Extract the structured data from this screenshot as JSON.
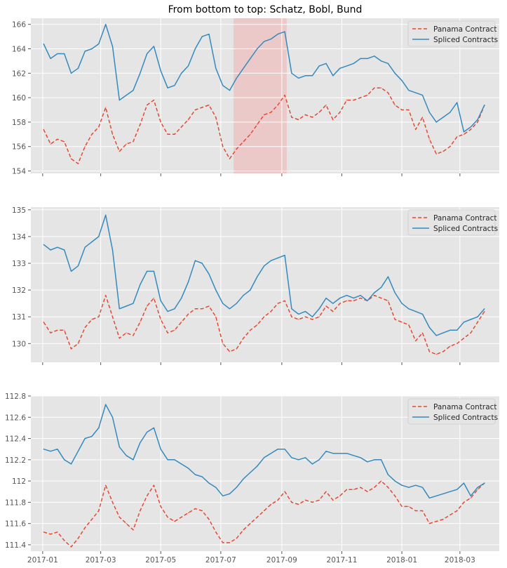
{
  "chart_data": [
    {
      "type": "line",
      "title": "From bottom to top: Schatz, Bobl, Bund",
      "xlabel": "",
      "ylabel": "",
      "xlim": [
        "2016-12-20",
        "2018-04-10"
      ],
      "ylim": [
        153.8,
        166.5
      ],
      "yticks": [
        154,
        156,
        158,
        160,
        162,
        164,
        166
      ],
      "xticks": [
        "2017-01",
        "2017-03",
        "2017-05",
        "2017-07",
        "2017-09",
        "2017-11",
        "2018-01",
        "2018-03"
      ],
      "show_xtick_labels": false,
      "grid": true,
      "legend": "top-right",
      "highlight_span": {
        "start": "2017-07-14",
        "end": "2017-09-06",
        "color": "#f4a6a6"
      },
      "x": [
        "2017-01-02",
        "2017-01-09",
        "2017-01-16",
        "2017-01-23",
        "2017-01-30",
        "2017-02-06",
        "2017-02-13",
        "2017-02-20",
        "2017-02-27",
        "2017-03-06",
        "2017-03-13",
        "2017-03-20",
        "2017-03-27",
        "2017-04-03",
        "2017-04-10",
        "2017-04-17",
        "2017-04-24",
        "2017-05-01",
        "2017-05-08",
        "2017-05-15",
        "2017-05-22",
        "2017-05-29",
        "2017-06-05",
        "2017-06-12",
        "2017-06-19",
        "2017-06-26",
        "2017-07-03",
        "2017-07-10",
        "2017-07-17",
        "2017-07-24",
        "2017-07-31",
        "2017-08-07",
        "2017-08-14",
        "2017-08-21",
        "2017-08-28",
        "2017-09-04",
        "2017-09-11",
        "2017-09-18",
        "2017-09-25",
        "2017-10-02",
        "2017-10-09",
        "2017-10-16",
        "2017-10-23",
        "2017-10-30",
        "2017-11-06",
        "2017-11-13",
        "2017-11-20",
        "2017-11-27",
        "2017-12-04",
        "2017-12-11",
        "2017-12-18",
        "2017-12-25",
        "2018-01-01",
        "2018-01-08",
        "2018-01-15",
        "2018-01-22",
        "2018-01-29",
        "2018-02-05",
        "2018-02-12",
        "2018-02-19",
        "2018-02-26",
        "2018-03-05",
        "2018-03-12",
        "2018-03-19",
        "2018-03-26"
      ],
      "series": [
        {
          "name": "Panama Contract",
          "style": "dashed",
          "color": "#E24A33",
          "values": [
            157.4,
            156.2,
            156.6,
            156.4,
            155.0,
            154.6,
            156.0,
            157.0,
            157.6,
            159.2,
            157.0,
            155.6,
            156.2,
            156.4,
            157.8,
            159.4,
            159.8,
            158.0,
            157.0,
            157.0,
            157.6,
            158.2,
            159.0,
            159.2,
            159.4,
            158.4,
            156.0,
            155.0,
            155.8,
            156.4,
            157.0,
            157.8,
            158.6,
            158.8,
            159.4,
            160.2,
            158.4,
            158.2,
            158.6,
            158.4,
            158.8,
            159.4,
            158.2,
            158.8,
            159.8,
            159.8,
            160.0,
            160.2,
            160.8,
            160.8,
            160.4,
            159.4,
            159.0,
            159.0,
            157.4,
            158.4,
            156.6,
            155.4,
            155.6,
            156.0,
            156.8,
            157.0,
            157.4,
            158.0,
            159.4
          ]
        },
        {
          "name": "Spliced Contracts",
          "style": "solid",
          "color": "#348ABD",
          "values": [
            164.4,
            163.2,
            163.6,
            163.6,
            162.0,
            162.4,
            163.8,
            164.0,
            164.4,
            166.0,
            164.2,
            159.8,
            160.2,
            160.6,
            162.0,
            163.6,
            164.2,
            162.2,
            160.8,
            161.0,
            162.0,
            162.6,
            164.0,
            165.0,
            165.2,
            162.4,
            161.0,
            160.6,
            161.6,
            162.4,
            163.2,
            164.0,
            164.6,
            164.8,
            165.2,
            165.4,
            162.0,
            161.6,
            161.8,
            161.8,
            162.6,
            162.8,
            161.8,
            162.4,
            162.6,
            162.8,
            163.2,
            163.2,
            163.4,
            163.0,
            162.8,
            162.0,
            161.4,
            160.6,
            160.4,
            160.2,
            158.8,
            158.0,
            158.4,
            158.8,
            159.6,
            157.2,
            157.6,
            158.2,
            159.4
          ]
        }
      ]
    },
    {
      "type": "line",
      "title": "",
      "xlabel": "",
      "ylabel": "",
      "xlim": [
        "2016-12-20",
        "2018-04-10"
      ],
      "ylim": [
        129.3,
        135.1
      ],
      "yticks": [
        130,
        131,
        132,
        133,
        134,
        135
      ],
      "xticks": [
        "2017-01",
        "2017-03",
        "2017-05",
        "2017-07",
        "2017-09",
        "2017-11",
        "2018-01",
        "2018-03"
      ],
      "show_xtick_labels": false,
      "grid": true,
      "legend": "top-right",
      "x": [
        "2017-01-02",
        "2017-01-09",
        "2017-01-16",
        "2017-01-23",
        "2017-01-30",
        "2017-02-06",
        "2017-02-13",
        "2017-02-20",
        "2017-02-27",
        "2017-03-06",
        "2017-03-13",
        "2017-03-20",
        "2017-03-27",
        "2017-04-03",
        "2017-04-10",
        "2017-04-17",
        "2017-04-24",
        "2017-05-01",
        "2017-05-08",
        "2017-05-15",
        "2017-05-22",
        "2017-05-29",
        "2017-06-05",
        "2017-06-12",
        "2017-06-19",
        "2017-06-26",
        "2017-07-03",
        "2017-07-10",
        "2017-07-17",
        "2017-07-24",
        "2017-07-31",
        "2017-08-07",
        "2017-08-14",
        "2017-08-21",
        "2017-08-28",
        "2017-09-04",
        "2017-09-11",
        "2017-09-18",
        "2017-09-25",
        "2017-10-02",
        "2017-10-09",
        "2017-10-16",
        "2017-10-23",
        "2017-10-30",
        "2017-11-06",
        "2017-11-13",
        "2017-11-20",
        "2017-11-27",
        "2017-12-04",
        "2017-12-11",
        "2017-12-18",
        "2017-12-25",
        "2018-01-01",
        "2018-01-08",
        "2018-01-15",
        "2018-01-22",
        "2018-01-29",
        "2018-02-05",
        "2018-02-12",
        "2018-02-19",
        "2018-02-26",
        "2018-03-05",
        "2018-03-12",
        "2018-03-19",
        "2018-03-26"
      ],
      "series": [
        {
          "name": "Panama Contract",
          "style": "dashed",
          "color": "#E24A33",
          "values": [
            130.8,
            130.4,
            130.5,
            130.5,
            129.8,
            130.0,
            130.6,
            130.9,
            131.0,
            131.8,
            131.0,
            130.2,
            130.4,
            130.3,
            130.8,
            131.4,
            131.7,
            130.9,
            130.4,
            130.5,
            130.8,
            131.1,
            131.3,
            131.3,
            131.4,
            131.0,
            130.0,
            129.7,
            129.8,
            130.2,
            130.5,
            130.7,
            131.0,
            131.2,
            131.5,
            131.6,
            131.0,
            130.9,
            131.0,
            130.9,
            131.0,
            131.4,
            131.2,
            131.5,
            131.6,
            131.6,
            131.7,
            131.6,
            131.8,
            131.7,
            131.6,
            130.9,
            130.8,
            130.7,
            130.1,
            130.4,
            129.7,
            129.6,
            129.7,
            129.9,
            130.0,
            130.2,
            130.4,
            130.8,
            131.2
          ]
        },
        {
          "name": "Spliced Contracts",
          "style": "solid",
          "color": "#348ABD",
          "values": [
            133.7,
            133.5,
            133.6,
            133.5,
            132.7,
            132.9,
            133.6,
            133.8,
            134.0,
            134.8,
            133.5,
            131.3,
            131.4,
            131.5,
            132.2,
            132.7,
            132.7,
            131.6,
            131.2,
            131.3,
            131.7,
            132.3,
            133.1,
            133.0,
            132.6,
            132.0,
            131.5,
            131.3,
            131.5,
            131.8,
            132.0,
            132.5,
            132.9,
            133.1,
            133.2,
            133.3,
            131.3,
            131.1,
            131.2,
            131.0,
            131.3,
            131.7,
            131.5,
            131.7,
            131.8,
            131.7,
            131.8,
            131.6,
            131.9,
            132.1,
            132.5,
            131.9,
            131.5,
            131.3,
            131.2,
            131.1,
            130.6,
            130.3,
            130.4,
            130.5,
            130.5,
            130.8,
            130.9,
            131.0,
            131.3
          ]
        }
      ]
    },
    {
      "type": "line",
      "title": "",
      "xlabel": "",
      "ylabel": "",
      "xlim": [
        "2016-12-20",
        "2018-04-10"
      ],
      "ylim": [
        111.34,
        112.8
      ],
      "yticks": [
        111.4,
        111.6,
        111.8,
        112.0,
        112.2,
        112.4,
        112.6,
        112.8
      ],
      "xticks": [
        "2017-01",
        "2017-03",
        "2017-05",
        "2017-07",
        "2017-09",
        "2017-11",
        "2018-01",
        "2018-03"
      ],
      "xtick_labels": [
        "2017-01",
        "2017-03",
        "2017-05",
        "2017-07",
        "2017-09",
        "2017-11",
        "2018-01",
        "2018-03"
      ],
      "show_xtick_labels": true,
      "grid": true,
      "legend": "top-right",
      "x": [
        "2017-01-02",
        "2017-01-09",
        "2017-01-16",
        "2017-01-23",
        "2017-01-30",
        "2017-02-06",
        "2017-02-13",
        "2017-02-20",
        "2017-02-27",
        "2017-03-06",
        "2017-03-13",
        "2017-03-20",
        "2017-03-27",
        "2017-04-03",
        "2017-04-10",
        "2017-04-17",
        "2017-04-24",
        "2017-05-01",
        "2017-05-08",
        "2017-05-15",
        "2017-05-22",
        "2017-05-29",
        "2017-06-05",
        "2017-06-12",
        "2017-06-19",
        "2017-06-26",
        "2017-07-03",
        "2017-07-10",
        "2017-07-17",
        "2017-07-24",
        "2017-07-31",
        "2017-08-07",
        "2017-08-14",
        "2017-08-21",
        "2017-08-28",
        "2017-09-04",
        "2017-09-11",
        "2017-09-18",
        "2017-09-25",
        "2017-10-02",
        "2017-10-09",
        "2017-10-16",
        "2017-10-23",
        "2017-10-30",
        "2017-11-06",
        "2017-11-13",
        "2017-11-20",
        "2017-11-27",
        "2017-12-04",
        "2017-12-11",
        "2017-12-18",
        "2017-12-25",
        "2018-01-01",
        "2018-01-08",
        "2018-01-15",
        "2018-01-22",
        "2018-01-29",
        "2018-02-05",
        "2018-02-12",
        "2018-02-19",
        "2018-02-26",
        "2018-03-05",
        "2018-03-12",
        "2018-03-19",
        "2018-03-26"
      ],
      "series": [
        {
          "name": "Panama Contract",
          "style": "dashed",
          "color": "#E24A33",
          "values": [
            111.52,
            111.5,
            111.52,
            111.44,
            111.38,
            111.46,
            111.56,
            111.64,
            111.72,
            111.96,
            111.8,
            111.66,
            111.6,
            111.54,
            111.72,
            111.86,
            111.96,
            111.76,
            111.66,
            111.62,
            111.66,
            111.7,
            111.74,
            111.72,
            111.64,
            111.52,
            111.42,
            111.42,
            111.46,
            111.54,
            111.6,
            111.66,
            111.72,
            111.78,
            111.82,
            111.9,
            111.8,
            111.78,
            111.82,
            111.8,
            111.82,
            111.9,
            111.82,
            111.86,
            111.92,
            111.92,
            111.94,
            111.9,
            111.94,
            112.0,
            111.94,
            111.86,
            111.76,
            111.76,
            111.72,
            111.72,
            111.6,
            111.62,
            111.64,
            111.68,
            111.72,
            111.8,
            111.84,
            111.92,
            111.98
          ]
        },
        {
          "name": "Spliced Contracts",
          "style": "solid",
          "color": "#348ABD",
          "values": [
            112.3,
            112.28,
            112.3,
            112.2,
            112.16,
            112.28,
            112.4,
            112.42,
            112.5,
            112.72,
            112.6,
            112.32,
            112.24,
            112.2,
            112.36,
            112.46,
            112.5,
            112.3,
            112.2,
            112.2,
            112.16,
            112.12,
            112.06,
            112.04,
            111.98,
            111.94,
            111.86,
            111.88,
            111.94,
            112.02,
            112.08,
            112.14,
            112.22,
            112.26,
            112.3,
            112.3,
            112.22,
            112.2,
            112.22,
            112.16,
            112.2,
            112.28,
            112.26,
            112.26,
            112.26,
            112.24,
            112.22,
            112.18,
            112.2,
            112.2,
            112.06,
            112.0,
            111.96,
            111.94,
            111.96,
            111.94,
            111.84,
            111.86,
            111.88,
            111.9,
            111.92,
            111.98,
            111.86,
            111.94,
            111.98
          ]
        }
      ]
    }
  ],
  "legend_labels": [
    "Panama Contract",
    "Spliced Contracts"
  ]
}
